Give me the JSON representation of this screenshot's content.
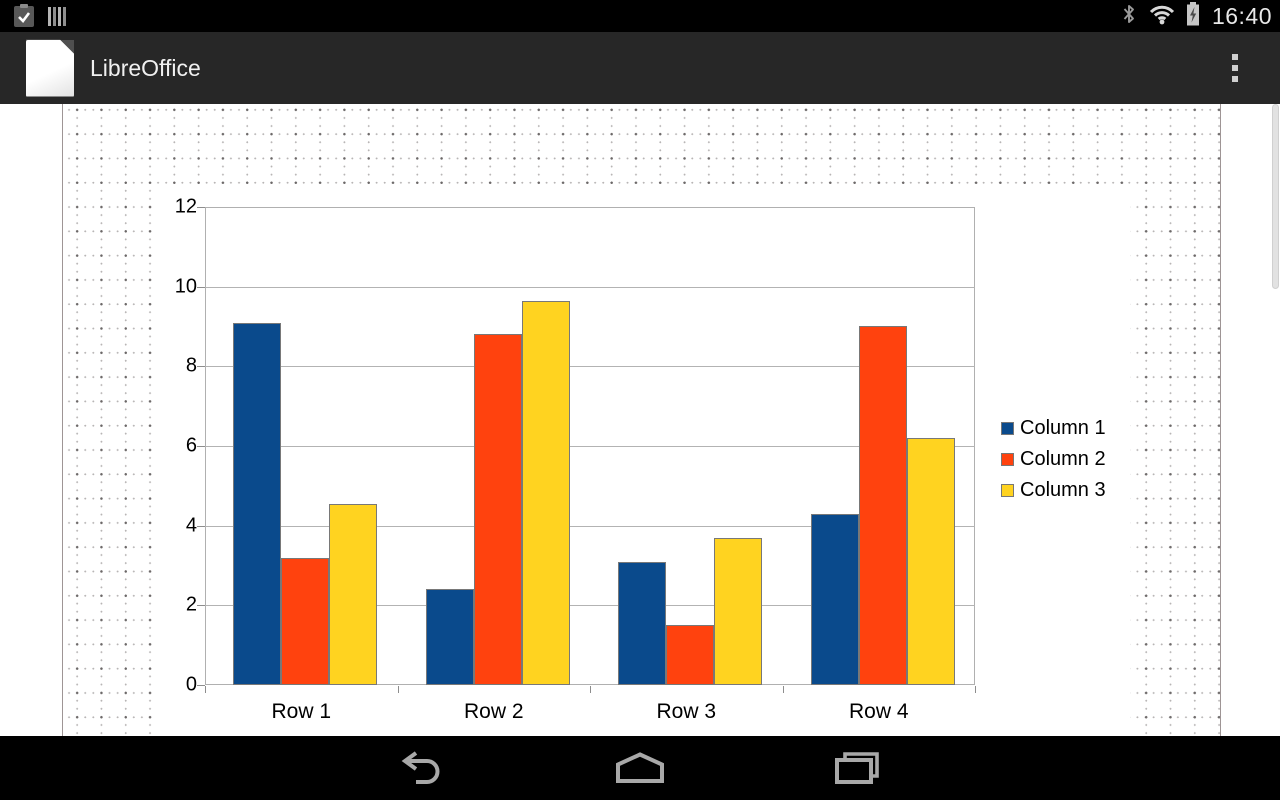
{
  "status_bar": {
    "time": "16:40",
    "left_icons": [
      "task-complete-notification-icon",
      "stacked-bars-notification-icon"
    ],
    "right_icons": [
      "bluetooth-icon",
      "wifi-icon",
      "battery-charging-icon"
    ]
  },
  "app_bar": {
    "title": "LibreOffice",
    "app_icon": "libreoffice-document-icon",
    "overflow_icon": "overflow-menu-icon"
  },
  "nav_bar": {
    "buttons": [
      "back",
      "home",
      "recents"
    ]
  },
  "document": {
    "background": "dotted-drawing-grid",
    "scrollbar": "vertical"
  },
  "chart_data": {
    "type": "bar",
    "title": "",
    "categories": [
      "Row 1",
      "Row 2",
      "Row 3",
      "Row 4"
    ],
    "series": [
      {
        "name": "Column 1",
        "color": "#0a4a8c",
        "values": [
          9.1,
          2.4,
          3.1,
          4.3
        ]
      },
      {
        "name": "Column 2",
        "color": "#ff420e",
        "values": [
          3.2,
          8.8,
          1.5,
          9.02
        ]
      },
      {
        "name": "Column 3",
        "color": "#ffd320",
        "values": [
          4.54,
          9.65,
          3.7,
          6.2
        ]
      }
    ],
    "xlabel": "",
    "ylabel": "",
    "ylim": [
      0,
      12
    ],
    "ytick_step": 2,
    "ytick_labels": [
      "0",
      "2",
      "4",
      "6",
      "8",
      "10",
      "12"
    ],
    "grid": true,
    "gridline_color": "#b3b3b3",
    "legend_position": "right",
    "legend_entries": [
      "Column 1",
      "Column 2",
      "Column 3"
    ]
  }
}
